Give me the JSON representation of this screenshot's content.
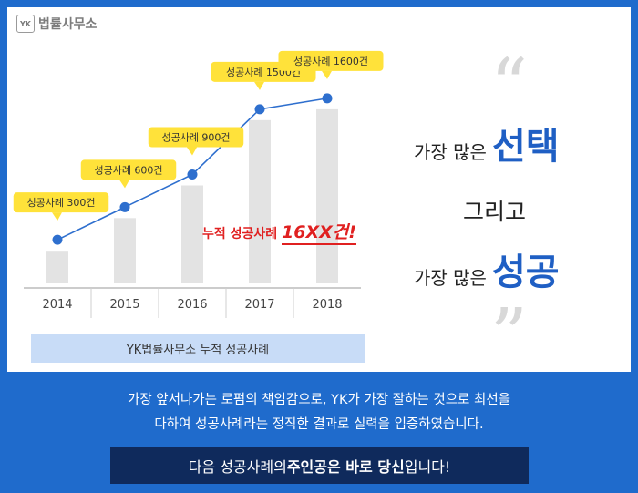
{
  "logo": {
    "mark": "YK",
    "text": "법률사무소"
  },
  "chart_data": {
    "type": "bar",
    "categories": [
      "2014",
      "2015",
      "2016",
      "2017",
      "2018"
    ],
    "values": [
      300,
      600,
      900,
      1500,
      1600
    ],
    "callouts": [
      "성공사례 300건",
      "성공사례 600건",
      "성공사례 900건",
      "성공사례 1500건",
      "성공사례 1600건"
    ],
    "xlabel": "YK법률사무소 누적 성공사례",
    "ylim": [
      0,
      1800
    ],
    "grid": false,
    "colors": {
      "bar": "#e3e3e3",
      "line": "#2e6fce",
      "marker": "#2e6fce",
      "callout": "#ffe23a"
    }
  },
  "annotation": {
    "prefix": "누적 성공사례 ",
    "highlight": "16XX건!"
  },
  "slogan": {
    "line1_small": "가장 많은",
    "line1_big": "선택",
    "line2": "그리고",
    "line3_small": "가장 많은",
    "line3_big": "성공",
    "quote_open": "“",
    "quote_close": "”"
  },
  "description": {
    "line1": "가장 앞서나가는 로펌의 책임감으로, YK가 가장 잘하는 것으로 최선을",
    "line2": "다하여 성공사례라는 정직한 결과로 실력을 입증하였습니다."
  },
  "cta": {
    "pre": "다음 성공사례의 ",
    "bold": "주인공은 바로 당신",
    "post": "입니다!"
  }
}
